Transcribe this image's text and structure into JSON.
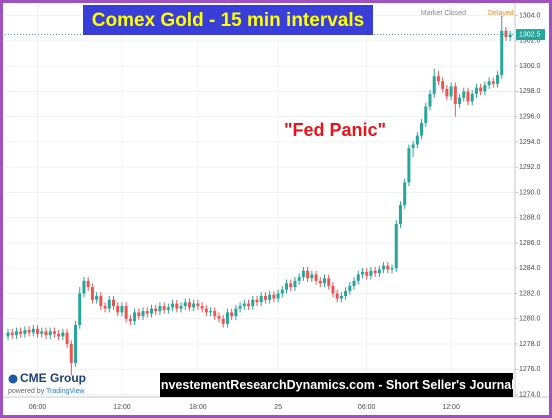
{
  "chart_data": {
    "type": "candlestick",
    "title": "Comex Gold - 15 min intervals",
    "annotation": "\"Fed Panic\"",
    "status": "Market Closed",
    "feed": "Delayed",
    "brand": "CME Group",
    "powered_by": "powered by",
    "provider": "TradingView",
    "banner": "InvestementResearchDynamics.com - Short Seller's Journal",
    "last_price": 1302.5,
    "up_color": "#26a69a",
    "down_color": "#ef5350",
    "grid": true,
    "ylim": [
      1273.8,
      1305
    ],
    "yticks": [
      {
        "value": 1274,
        "label": "1274.0"
      },
      {
        "value": 1276,
        "label": "1276.0"
      },
      {
        "value": 1278,
        "label": "1278.0"
      },
      {
        "value": 1280,
        "label": "1280.0"
      },
      {
        "value": 1282,
        "label": "1282.0"
      },
      {
        "value": 1284,
        "label": "1284.0"
      },
      {
        "value": 1286,
        "label": "1286.0"
      },
      {
        "value": 1288,
        "label": "1288.0"
      },
      {
        "value": 1290,
        "label": "1290.0"
      },
      {
        "value": 1292,
        "label": "1292.0"
      },
      {
        "value": 1294,
        "label": "1294.0"
      },
      {
        "value": 1296,
        "label": "1296.0"
      },
      {
        "value": 1298,
        "label": "1298.0"
      },
      {
        "value": 1300,
        "label": "1300.0"
      },
      {
        "value": 1302,
        "label": "1302.0"
      },
      {
        "value": 1304,
        "label": "1304.0"
      }
    ],
    "categories": [
      null,
      null,
      null,
      null,
      null,
      null,
      null,
      "06:00",
      null,
      null,
      null,
      null,
      null,
      null,
      null,
      null,
      null,
      null,
      null,
      null,
      null,
      null,
      null,
      null,
      null,
      null,
      null,
      "12:00",
      null,
      null,
      null,
      null,
      null,
      null,
      null,
      null,
      null,
      null,
      null,
      null,
      null,
      null,
      null,
      null,
      null,
      "18:00",
      null,
      null,
      null,
      null,
      null,
      null,
      null,
      null,
      null,
      null,
      null,
      null,
      null,
      null,
      null,
      null,
      null,
      null,
      "25",
      null,
      null,
      null,
      null,
      null,
      null,
      null,
      null,
      null,
      null,
      null,
      null,
      null,
      null,
      null,
      null,
      null,
      null,
      null,
      null,
      "06:00",
      null,
      null,
      null,
      null,
      null,
      null,
      null,
      null,
      null,
      null,
      null,
      null,
      null,
      null,
      null,
      null,
      null,
      null,
      null,
      "12:00",
      null,
      null,
      null,
      null,
      null,
      null,
      null,
      null,
      null,
      null,
      null,
      null,
      null,
      null
    ],
    "candles": [
      [
        1278.6,
        1279.2,
        1278.3,
        1278.9
      ],
      [
        1278.9,
        1279.2,
        1278.4,
        1278.7
      ],
      [
        1278.7,
        1279.3,
        1278.4,
        1279.0
      ],
      [
        1279.0,
        1279.3,
        1278.5,
        1278.8
      ],
      [
        1278.8,
        1279.4,
        1278.5,
        1279.1
      ],
      [
        1279.1,
        1279.4,
        1278.6,
        1278.9
      ],
      [
        1278.9,
        1279.5,
        1278.6,
        1279.2
      ],
      [
        1279.2,
        1279.5,
        1278.5,
        1278.8
      ],
      [
        1278.8,
        1279.3,
        1278.5,
        1279.0
      ],
      [
        1279.0,
        1279.3,
        1278.4,
        1278.7
      ],
      [
        1278.7,
        1279.3,
        1278.4,
        1279.0
      ],
      [
        1279.0,
        1279.3,
        1278.5,
        1278.8
      ],
      [
        1278.8,
        1279.1,
        1278.3,
        1278.6
      ],
      [
        1278.6,
        1279.2,
        1278.3,
        1278.9
      ],
      [
        1278.9,
        1279.2,
        1277.7,
        1278.0
      ],
      [
        1278.0,
        1278.3,
        1275.5,
        1276.5
      ],
      [
        1276.5,
        1279.8,
        1276.2,
        1279.5
      ],
      [
        1279.5,
        1282.5,
        1279.2,
        1282.0
      ],
      [
        1282.0,
        1283.3,
        1281.7,
        1283.0
      ],
      [
        1283.0,
        1283.3,
        1282.2,
        1282.5
      ],
      [
        1282.5,
        1282.8,
        1281.2,
        1281.5
      ],
      [
        1281.5,
        1282.1,
        1281.2,
        1281.8
      ],
      [
        1281.8,
        1282.1,
        1280.7,
        1281.0
      ],
      [
        1281.0,
        1281.3,
        1280.5,
        1280.8
      ],
      [
        1280.8,
        1281.8,
        1280.5,
        1281.5
      ],
      [
        1281.5,
        1281.8,
        1280.7,
        1281.0
      ],
      [
        1281.0,
        1281.3,
        1280.2,
        1280.5
      ],
      [
        1280.5,
        1281.3,
        1280.2,
        1281.0
      ],
      [
        1281.0,
        1281.3,
        1279.7,
        1280.0
      ],
      [
        1280.0,
        1280.3,
        1279.5,
        1279.8
      ],
      [
        1279.8,
        1280.8,
        1279.5,
        1280.5
      ],
      [
        1280.5,
        1280.8,
        1279.9,
        1280.2
      ],
      [
        1280.2,
        1280.9,
        1279.9,
        1280.6
      ],
      [
        1280.6,
        1280.9,
        1280.1,
        1280.4
      ],
      [
        1280.4,
        1281.1,
        1280.1,
        1280.8
      ],
      [
        1280.8,
        1281.1,
        1280.3,
        1280.6
      ],
      [
        1280.6,
        1281.3,
        1280.3,
        1281.0
      ],
      [
        1281.0,
        1281.3,
        1280.4,
        1280.7
      ],
      [
        1280.7,
        1281.2,
        1280.4,
        1280.9
      ],
      [
        1280.9,
        1281.5,
        1280.6,
        1281.2
      ],
      [
        1281.2,
        1281.5,
        1280.5,
        1280.8
      ],
      [
        1280.8,
        1281.3,
        1280.5,
        1281.0
      ],
      [
        1281.0,
        1281.6,
        1280.7,
        1281.3
      ],
      [
        1281.3,
        1281.6,
        1280.6,
        1280.9
      ],
      [
        1280.9,
        1281.5,
        1280.6,
        1281.2
      ],
      [
        1281.2,
        1281.5,
        1280.7,
        1281.0
      ],
      [
        1281.0,
        1281.3,
        1280.5,
        1280.8
      ],
      [
        1280.8,
        1281.1,
        1280.2,
        1280.5
      ],
      [
        1280.5,
        1280.9,
        1280.2,
        1280.6
      ],
      [
        1280.6,
        1280.9,
        1279.9,
        1280.2
      ],
      [
        1280.2,
        1280.5,
        1279.7,
        1280.0
      ],
      [
        1280.0,
        1280.3,
        1279.3,
        1279.6
      ],
      [
        1279.6,
        1280.8,
        1279.3,
        1280.5
      ],
      [
        1280.5,
        1280.8,
        1279.9,
        1280.2
      ],
      [
        1280.2,
        1281.1,
        1279.9,
        1280.8
      ],
      [
        1280.8,
        1281.3,
        1280.5,
        1281.0
      ],
      [
        1281.0,
        1281.5,
        1280.7,
        1281.2
      ],
      [
        1281.2,
        1281.5,
        1280.7,
        1281.0
      ],
      [
        1281.0,
        1281.8,
        1280.7,
        1281.5
      ],
      [
        1281.5,
        1281.8,
        1281.0,
        1281.3
      ],
      [
        1281.3,
        1282.1,
        1281.0,
        1281.8
      ],
      [
        1281.8,
        1282.1,
        1281.2,
        1281.5
      ],
      [
        1281.5,
        1282.2,
        1281.2,
        1281.9
      ],
      [
        1281.9,
        1282.2,
        1281.3,
        1281.6
      ],
      [
        1281.6,
        1282.3,
        1281.3,
        1282.0
      ],
      [
        1282.0,
        1282.6,
        1281.7,
        1282.3
      ],
      [
        1282.3,
        1283.1,
        1282.0,
        1282.8
      ],
      [
        1282.8,
        1283.1,
        1282.2,
        1282.5
      ],
      [
        1282.5,
        1283.3,
        1282.2,
        1283.0
      ],
      [
        1283.0,
        1283.6,
        1282.7,
        1283.3
      ],
      [
        1283.3,
        1284.1,
        1283.0,
        1283.8
      ],
      [
        1283.8,
        1284.1,
        1282.9,
        1283.2
      ],
      [
        1283.2,
        1283.8,
        1282.9,
        1283.5
      ],
      [
        1283.5,
        1283.8,
        1282.7,
        1283.0
      ],
      [
        1283.0,
        1283.3,
        1282.5,
        1282.8
      ],
      [
        1282.8,
        1283.5,
        1282.5,
        1283.2
      ],
      [
        1283.2,
        1283.5,
        1282.3,
        1282.6
      ],
      [
        1282.6,
        1282.9,
        1281.7,
        1282.0
      ],
      [
        1282.0,
        1282.3,
        1281.3,
        1281.6
      ],
      [
        1281.6,
        1282.1,
        1281.3,
        1281.8
      ],
      [
        1281.8,
        1282.5,
        1281.5,
        1282.2
      ],
      [
        1282.2,
        1282.9,
        1281.9,
        1282.6
      ],
      [
        1282.6,
        1283.3,
        1282.3,
        1283.0
      ],
      [
        1283.0,
        1283.8,
        1282.7,
        1283.5
      ],
      [
        1283.5,
        1284.0,
        1283.2,
        1283.7
      ],
      [
        1283.7,
        1284.0,
        1283.1,
        1283.4
      ],
      [
        1283.4,
        1284.1,
        1283.1,
        1283.8
      ],
      [
        1283.8,
        1284.1,
        1283.3,
        1283.6
      ],
      [
        1283.6,
        1284.2,
        1283.3,
        1283.9
      ],
      [
        1283.9,
        1284.5,
        1283.6,
        1284.2
      ],
      [
        1284.2,
        1284.5,
        1283.6,
        1283.9
      ],
      [
        1283.9,
        1284.3,
        1283.6,
        1284.0
      ],
      [
        1284.0,
        1287.8,
        1283.7,
        1287.5
      ],
      [
        1287.5,
        1289.3,
        1287.2,
        1289.0
      ],
      [
        1289.0,
        1291.1,
        1288.7,
        1290.8
      ],
      [
        1290.8,
        1293.8,
        1290.5,
        1293.5
      ],
      [
        1293.5,
        1294.1,
        1292.8,
        1293.8
      ],
      [
        1293.8,
        1294.8,
        1293.5,
        1294.5
      ],
      [
        1294.5,
        1295.8,
        1294.2,
        1295.5
      ],
      [
        1295.5,
        1297.1,
        1295.2,
        1296.8
      ],
      [
        1296.8,
        1298.1,
        1296.5,
        1297.8
      ],
      [
        1297.8,
        1299.8,
        1297.5,
        1299.2
      ],
      [
        1299.2,
        1299.6,
        1298.5,
        1298.8
      ],
      [
        1298.8,
        1299.1,
        1297.9,
        1298.2
      ],
      [
        1298.2,
        1298.5,
        1297.3,
        1297.6
      ],
      [
        1297.6,
        1298.7,
        1297.3,
        1298.4
      ],
      [
        1298.4,
        1298.7,
        1296.0,
        1297.0
      ],
      [
        1297.0,
        1297.8,
        1296.7,
        1297.5
      ],
      [
        1297.5,
        1298.3,
        1297.2,
        1298.0
      ],
      [
        1298.0,
        1298.3,
        1296.9,
        1297.2
      ],
      [
        1297.2,
        1298.1,
        1296.9,
        1297.8
      ],
      [
        1297.8,
        1298.6,
        1297.5,
        1298.3
      ],
      [
        1298.3,
        1298.6,
        1297.7,
        1298.0
      ],
      [
        1298.0,
        1298.8,
        1297.7,
        1298.5
      ],
      [
        1298.5,
        1299.1,
        1298.2,
        1298.8
      ],
      [
        1298.8,
        1299.1,
        1298.3,
        1298.6
      ],
      [
        1298.6,
        1299.6,
        1298.3,
        1299.3
      ],
      [
        1299.3,
        1304.0,
        1299.0,
        1302.8
      ],
      [
        1302.8,
        1303.1,
        1302.0,
        1302.3
      ],
      [
        1302.3,
        1302.8,
        1302.0,
        1302.5
      ]
    ]
  }
}
